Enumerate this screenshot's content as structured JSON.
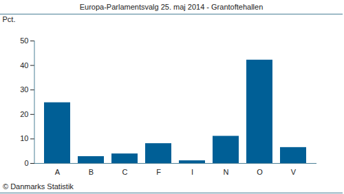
{
  "chart_data": {
    "type": "bar",
    "title": "Europa-Parlamentsvalg 25. maj 2014 - Grantoftehallen",
    "caption": "© Danmarks Statistik",
    "y_label": "Pct.",
    "categories": [
      "A",
      "B",
      "C",
      "F",
      "I",
      "N",
      "O",
      "V"
    ],
    "values": [
      24.8,
      2.8,
      3.9,
      8.1,
      1.1,
      11.1,
      42.2,
      6.5
    ],
    "color": "#005f96",
    "ylim": [
      0,
      50
    ],
    "yticks": [
      0,
      10,
      20,
      30,
      40,
      50
    ],
    "grid": false
  }
}
